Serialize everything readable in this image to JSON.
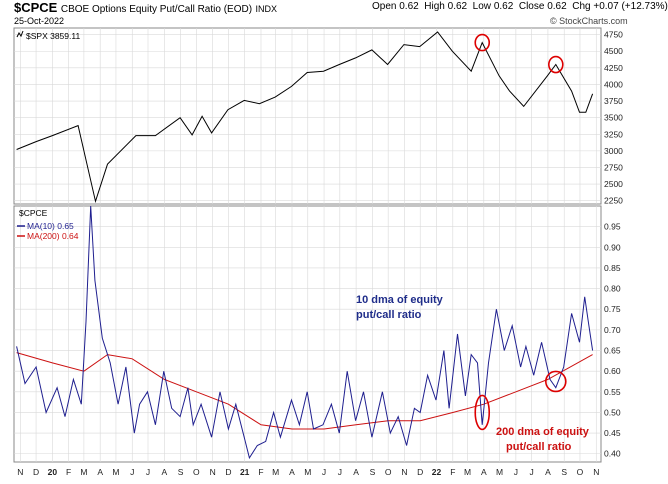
{
  "header": {
    "symbol": "$CPCE",
    "description": "CBOE Options Equity Put/Call Ratio (EOD)",
    "exchange": "INDX",
    "date": "25-Oct-2022",
    "open_label": "Open",
    "open": "0.62",
    "high_label": "High",
    "high": "0.62",
    "low_label": "Low",
    "low": "0.62",
    "close_label": "Close",
    "close": "0.62",
    "chg_label": "Chg",
    "chg": "+0.07 (+12.73%)",
    "watermark": "© StockCharts.com"
  },
  "colors": {
    "price_line": "#000000",
    "ma10": "#1f1f8f",
    "ma200": "#cc1111",
    "circle": "#dd0000",
    "annot_blue": "#1f2d8a",
    "annot_red": "#cc1111",
    "grid": "#d9d9d9"
  },
  "chart_data": [
    {
      "type": "line",
      "series": [
        {
          "name": "$SPX 3859.11",
          "x": [
            "2019-10-25",
            "2019-12-01",
            "2020-01-01",
            "2020-02-19",
            "2020-03-23",
            "2020-04-15",
            "2020-06-08",
            "2020-07-15",
            "2020-08-31",
            "2020-09-23",
            "2020-10-12",
            "2020-10-30",
            "2020-11-30",
            "2020-12-31",
            "2021-01-29",
            "2021-02-28",
            "2021-03-31",
            "2021-04-30",
            "2021-05-31",
            "2021-06-30",
            "2021-07-31",
            "2021-08-31",
            "2021-09-30",
            "2021-10-31",
            "2021-11-30",
            "2022-01-03",
            "2022-01-31",
            "2022-03-08",
            "2022-03-29",
            "2022-04-30",
            "2022-05-20",
            "2022-06-16",
            "2022-07-31",
            "2022-08-16",
            "2022-09-15",
            "2022-09-30",
            "2022-10-12",
            "2022-10-25"
          ],
          "y": [
            3020,
            3140,
            3230,
            3380,
            2240,
            2800,
            3230,
            3230,
            3500,
            3240,
            3520,
            3270,
            3620,
            3760,
            3710,
            3810,
            3970,
            4180,
            4200,
            4300,
            4400,
            4520,
            4300,
            4600,
            4570,
            4790,
            4500,
            4200,
            4630,
            4130,
            3900,
            3670,
            4130,
            4300,
            3900,
            3580,
            3580,
            3860
          ]
        }
      ],
      "ylim": [
        2200,
        4850
      ],
      "yticks": [
        2250,
        2500,
        2750,
        3000,
        3250,
        3500,
        3750,
        4000,
        4250,
        4500,
        4750
      ],
      "circled_points": [
        {
          "x": "2022-03-29",
          "y": 4630
        },
        {
          "x": "2022-08-16",
          "y": 4300
        }
      ]
    },
    {
      "type": "line",
      "series": [
        {
          "name": "MA(10) 0.65",
          "x": [
            "2019-10-25",
            "2019-11-10",
            "2019-12-01",
            "2019-12-20",
            "2020-01-10",
            "2020-01-25",
            "2020-02-10",
            "2020-02-25",
            "2020-03-05",
            "2020-03-14",
            "2020-03-22",
            "2020-04-05",
            "2020-04-20",
            "2020-05-05",
            "2020-05-20",
            "2020-06-05",
            "2020-06-15",
            "2020-06-30",
            "2020-07-15",
            "2020-07-31",
            "2020-08-15",
            "2020-08-31",
            "2020-09-15",
            "2020-09-25",
            "2020-10-10",
            "2020-10-30",
            "2020-11-15",
            "2020-12-01",
            "2020-12-15",
            "2020-12-31",
            "2021-01-10",
            "2021-01-25",
            "2021-02-10",
            "2021-02-25",
            "2021-03-10",
            "2021-03-31",
            "2021-04-15",
            "2021-04-30",
            "2021-05-12",
            "2021-05-30",
            "2021-06-15",
            "2021-06-30",
            "2021-07-15",
            "2021-07-31",
            "2021-08-15",
            "2021-08-31",
            "2021-09-20",
            "2021-10-05",
            "2021-10-20",
            "2021-11-05",
            "2021-11-20",
            "2021-12-01",
            "2021-12-15",
            "2021-12-31",
            "2022-01-15",
            "2022-01-25",
            "2022-02-10",
            "2022-02-25",
            "2022-03-08",
            "2022-03-20",
            "2022-03-29",
            "2022-04-10",
            "2022-04-25",
            "2022-05-10",
            "2022-05-25",
            "2022-06-10",
            "2022-06-20",
            "2022-07-05",
            "2022-07-20",
            "2022-08-05",
            "2022-08-16",
            "2022-08-31",
            "2022-09-15",
            "2022-09-30",
            "2022-10-10",
            "2022-10-18",
            "2022-10-25"
          ],
          "y": [
            0.66,
            0.57,
            0.61,
            0.5,
            0.56,
            0.49,
            0.58,
            0.52,
            0.72,
            1.0,
            0.82,
            0.68,
            0.62,
            0.52,
            0.61,
            0.45,
            0.52,
            0.55,
            0.47,
            0.6,
            0.51,
            0.49,
            0.56,
            0.47,
            0.52,
            0.44,
            0.55,
            0.46,
            0.52,
            0.44,
            0.39,
            0.42,
            0.43,
            0.5,
            0.44,
            0.53,
            0.47,
            0.55,
            0.46,
            0.47,
            0.52,
            0.45,
            0.6,
            0.48,
            0.55,
            0.44,
            0.55,
            0.45,
            0.49,
            0.42,
            0.51,
            0.5,
            0.59,
            0.53,
            0.65,
            0.51,
            0.69,
            0.54,
            0.64,
            0.62,
            0.47,
            0.62,
            0.75,
            0.65,
            0.71,
            0.61,
            0.66,
            0.59,
            0.67,
            0.58,
            0.56,
            0.61,
            0.74,
            0.67,
            0.78,
            0.71,
            0.65
          ]
        },
        {
          "name": "MA(200) 0.64",
          "x": [
            "2019-10-25",
            "2020-01-01",
            "2020-03-01",
            "2020-04-15",
            "2020-06-01",
            "2020-08-01",
            "2020-10-01",
            "2020-12-01",
            "2021-02-01",
            "2021-04-01",
            "2021-06-01",
            "2021-08-01",
            "2021-10-01",
            "2021-12-01",
            "2022-02-01",
            "2022-04-01",
            "2022-06-01",
            "2022-08-01",
            "2022-10-25"
          ],
          "y": [
            0.645,
            0.62,
            0.6,
            0.64,
            0.63,
            0.58,
            0.55,
            0.52,
            0.47,
            0.46,
            0.46,
            0.47,
            0.48,
            0.48,
            0.5,
            0.52,
            0.55,
            0.58,
            0.64
          ]
        }
      ],
      "ylim": [
        0.38,
        1.0
      ],
      "yticks": [
        0.4,
        0.45,
        0.5,
        0.55,
        0.6,
        0.65,
        0.7,
        0.75,
        0.8,
        0.85,
        0.9,
        0.95
      ],
      "legend_title": "$CPCE",
      "annotations": [
        {
          "text_line1": "10 dma of equity",
          "text_line2": "put/call ratio",
          "color": "annot_blue"
        },
        {
          "text_line1": "200 dma of equity",
          "text_line2": "put/call ratio",
          "color": "annot_red"
        }
      ],
      "circled_points": [
        {
          "x": "2022-03-29",
          "y": 0.5
        },
        {
          "x": "2022-08-16",
          "y": 0.575
        }
      ]
    }
  ],
  "x_axis": {
    "labels": [
      {
        "date": "2019-11-01",
        "text": "N",
        "bold": false
      },
      {
        "date": "2019-12-01",
        "text": "D",
        "bold": false
      },
      {
        "date": "2020-01-01",
        "text": "20",
        "bold": true
      },
      {
        "date": "2020-02-01",
        "text": "F",
        "bold": false
      },
      {
        "date": "2020-03-01",
        "text": "M",
        "bold": false
      },
      {
        "date": "2020-04-01",
        "text": "A",
        "bold": false
      },
      {
        "date": "2020-05-01",
        "text": "M",
        "bold": false
      },
      {
        "date": "2020-06-01",
        "text": "J",
        "bold": false
      },
      {
        "date": "2020-07-01",
        "text": "J",
        "bold": false
      },
      {
        "date": "2020-08-01",
        "text": "A",
        "bold": false
      },
      {
        "date": "2020-09-01",
        "text": "S",
        "bold": false
      },
      {
        "date": "2020-10-01",
        "text": "O",
        "bold": false
      },
      {
        "date": "2020-11-01",
        "text": "N",
        "bold": false
      },
      {
        "date": "2020-12-01",
        "text": "D",
        "bold": false
      },
      {
        "date": "2021-01-01",
        "text": "21",
        "bold": true
      },
      {
        "date": "2021-02-01",
        "text": "F",
        "bold": false
      },
      {
        "date": "2021-03-01",
        "text": "M",
        "bold": false
      },
      {
        "date": "2021-04-01",
        "text": "A",
        "bold": false
      },
      {
        "date": "2021-05-01",
        "text": "M",
        "bold": false
      },
      {
        "date": "2021-06-01",
        "text": "J",
        "bold": false
      },
      {
        "date": "2021-07-01",
        "text": "J",
        "bold": false
      },
      {
        "date": "2021-08-01",
        "text": "A",
        "bold": false
      },
      {
        "date": "2021-09-01",
        "text": "S",
        "bold": false
      },
      {
        "date": "2021-10-01",
        "text": "O",
        "bold": false
      },
      {
        "date": "2021-11-01",
        "text": "N",
        "bold": false
      },
      {
        "date": "2021-12-01",
        "text": "D",
        "bold": false
      },
      {
        "date": "2022-01-01",
        "text": "22",
        "bold": true
      },
      {
        "date": "2022-02-01",
        "text": "F",
        "bold": false
      },
      {
        "date": "2022-03-01",
        "text": "M",
        "bold": false
      },
      {
        "date": "2022-04-01",
        "text": "A",
        "bold": false
      },
      {
        "date": "2022-05-01",
        "text": "M",
        "bold": false
      },
      {
        "date": "2022-06-01",
        "text": "J",
        "bold": false
      },
      {
        "date": "2022-07-01",
        "text": "J",
        "bold": false
      },
      {
        "date": "2022-08-01",
        "text": "A",
        "bold": false
      },
      {
        "date": "2022-09-01",
        "text": "S",
        "bold": false
      },
      {
        "date": "2022-10-01",
        "text": "O",
        "bold": false
      },
      {
        "date": "2022-11-01",
        "text": "N",
        "bold": false
      }
    ],
    "range": [
      "2019-10-20",
      "2022-11-10"
    ]
  }
}
